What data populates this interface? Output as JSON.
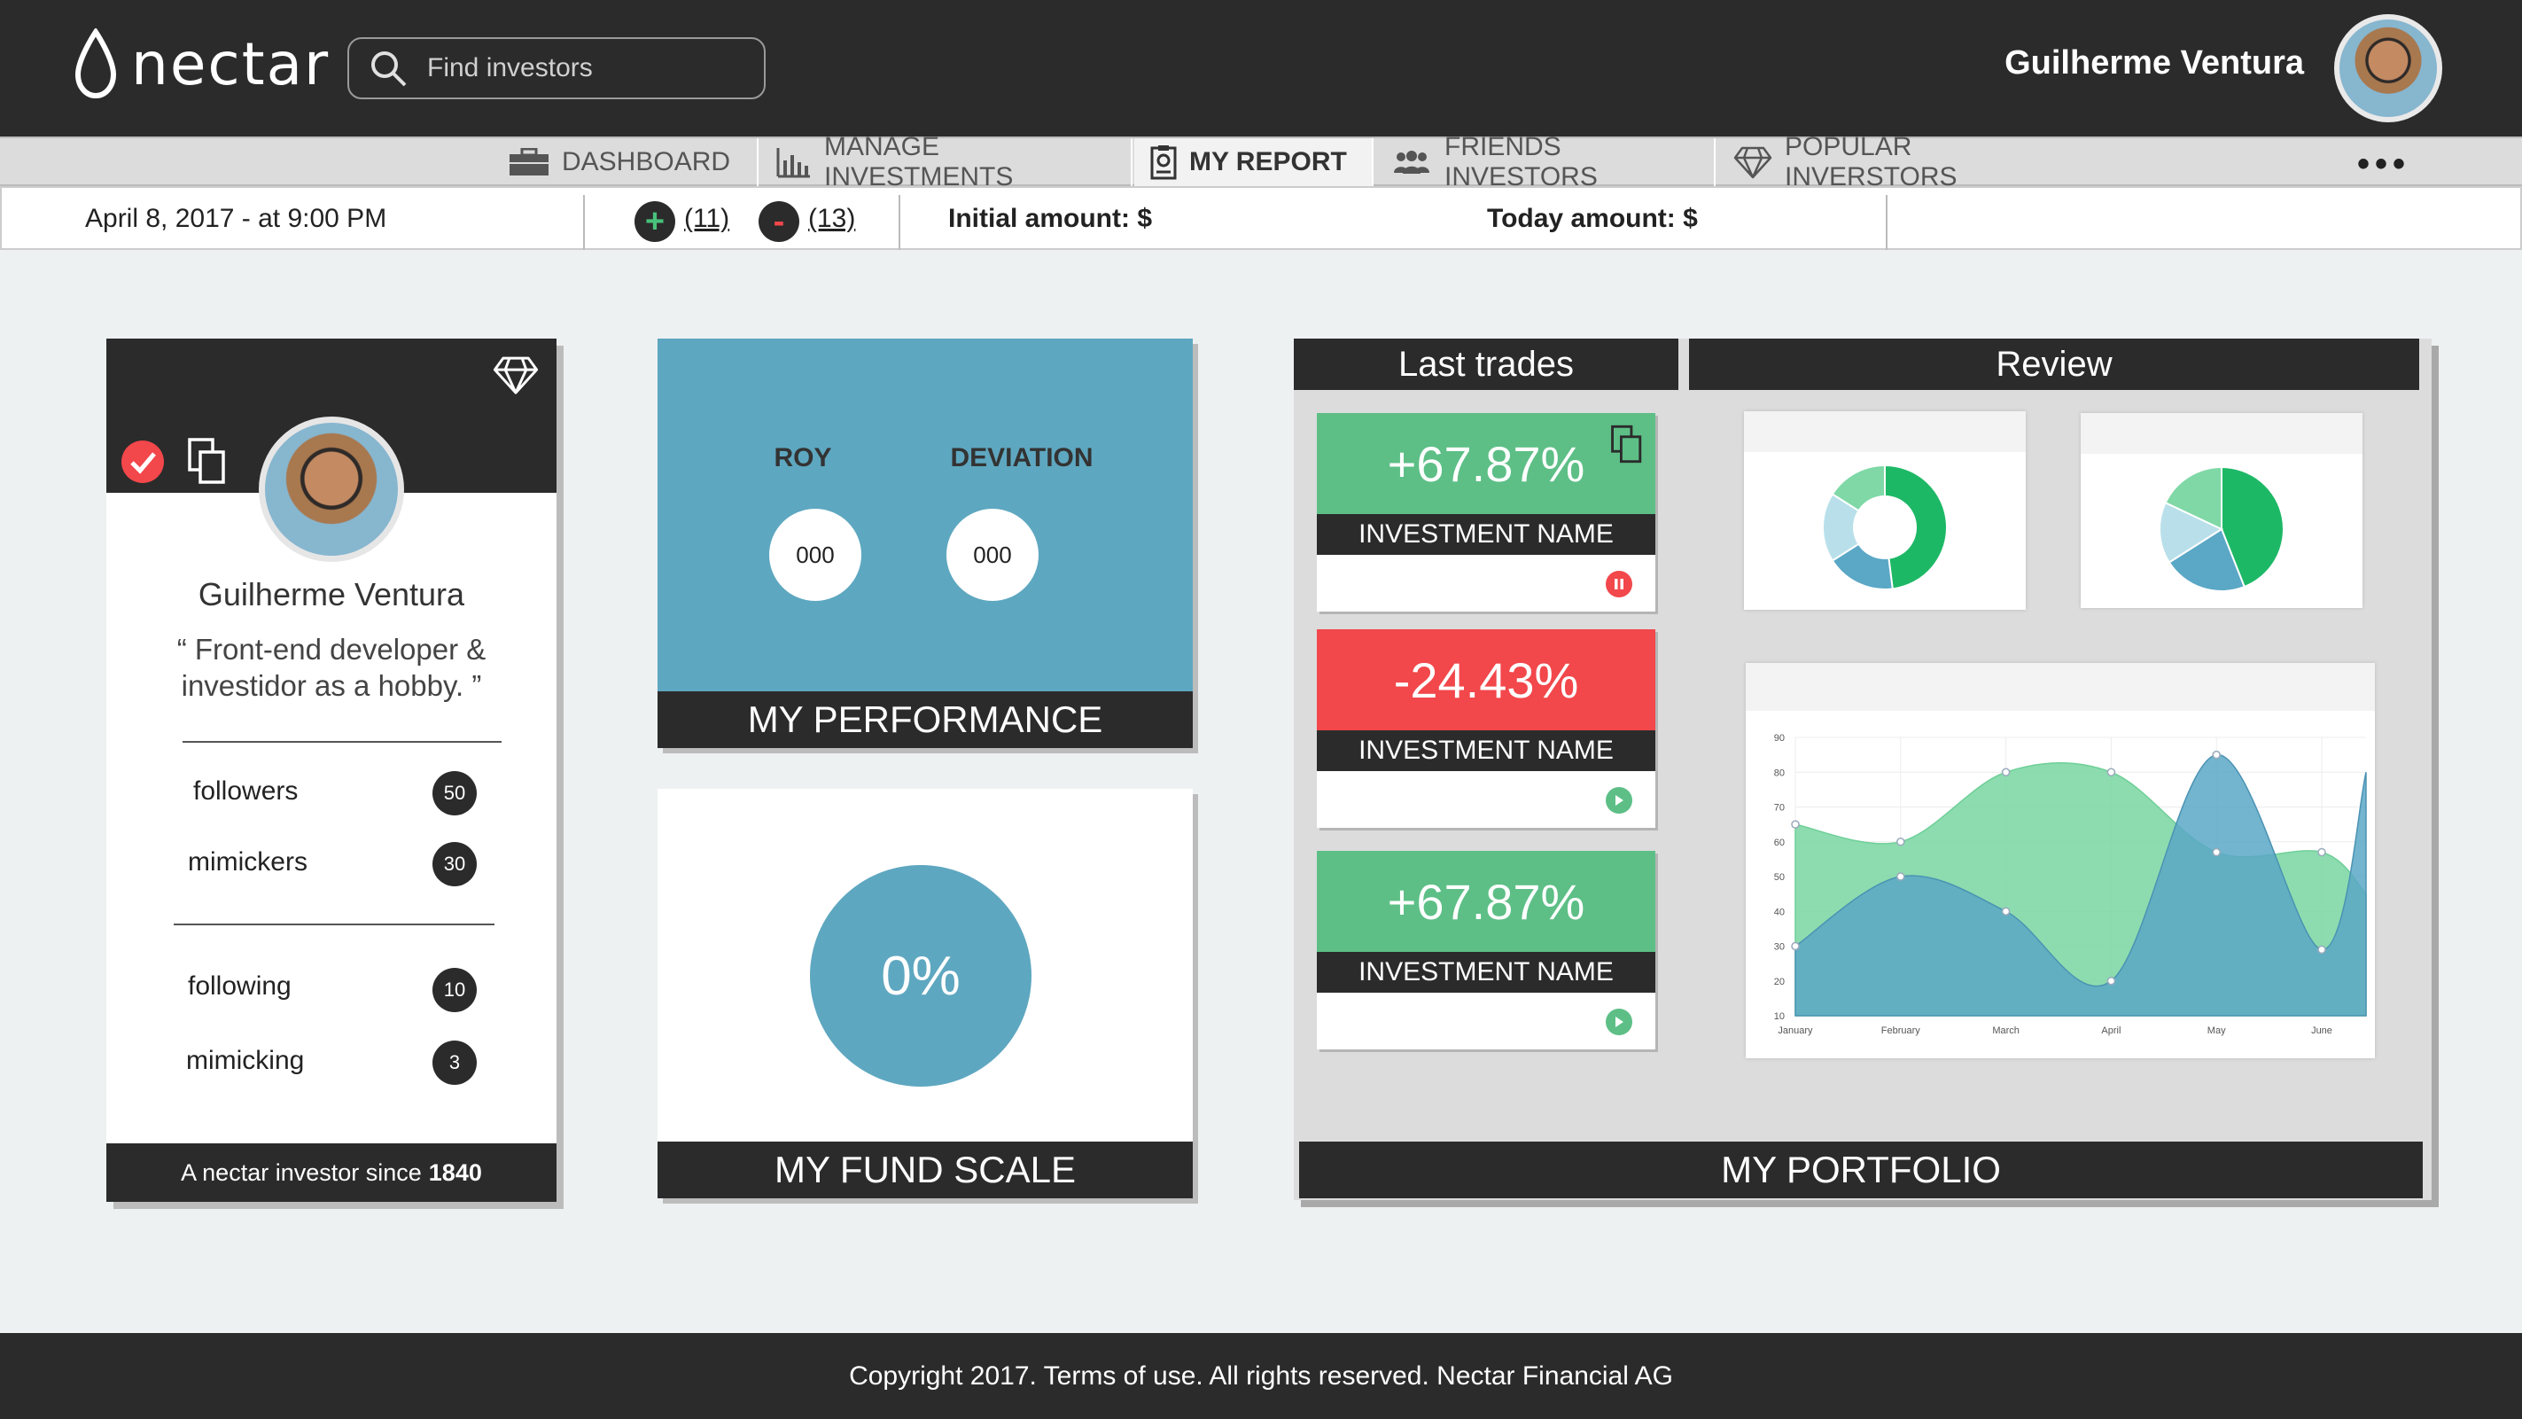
{
  "app": {
    "logo_text": "nectar"
  },
  "search": {
    "placeholder": "Find investors"
  },
  "user": {
    "name": "Guilherme Ventura"
  },
  "nav": {
    "tabs": [
      {
        "label": "DASHBOARD",
        "icon": "briefcase-icon",
        "active": false
      },
      {
        "label": "MANAGE INVESTMENTS",
        "icon": "bar-chart-icon",
        "active": false
      },
      {
        "label": "MY REPORT",
        "icon": "report-icon",
        "active": true
      },
      {
        "label": "FRIENDS INVESTORS",
        "icon": "people-icon",
        "active": false
      },
      {
        "label": "POPULAR INVERSTORS",
        "icon": "diamond-icon",
        "active": false
      }
    ],
    "more": "•••"
  },
  "infobar": {
    "date": "April 8, 2017 - at 9:00 PM",
    "plus_symbol": "+",
    "minus_symbol": "-",
    "plus_count": "(11)",
    "minus_count": "(13)",
    "initial_amount": "Initial amount: $",
    "today_amount": "Today amount: $"
  },
  "profile": {
    "name": "Guilherme Ventura",
    "bio": "“ Front-end developer & investidor as a hobby. ”",
    "stats": [
      {
        "label": "followers",
        "value": "50"
      },
      {
        "label": "mimickers",
        "value": "30"
      },
      {
        "label": "following",
        "value": "10"
      },
      {
        "label": "mimicking",
        "value": "3"
      }
    ],
    "since_prefix": "A nectar investor since",
    "since_year": "1840"
  },
  "performance": {
    "roy_label": "ROY",
    "roy_value": "000",
    "deviation_label": "DEVIATION",
    "deviation_value": "000",
    "title": "MY PERFORMANCE"
  },
  "fund": {
    "value": "0%",
    "title": "MY FUND SCALE"
  },
  "portfolio": {
    "last_trades_title": "Last trades",
    "review_title": "Review",
    "title": "MY PORTFOLIO",
    "trades": [
      {
        "pct": "+67.87%",
        "name": "INVESTMENT NAME",
        "color": "#5dbf86",
        "action": "pause"
      },
      {
        "pct": "-24.43%",
        "name": "INVESTMENT NAME",
        "color": "#f2474b",
        "action": "play"
      },
      {
        "pct": "+67.87%",
        "name": "INVESTMENT NAME",
        "color": "#5dbf86",
        "action": "play"
      }
    ]
  },
  "footer": {
    "text": "Copyright 2017. Terms of use. All rights reserved. Nectar Financial AG"
  },
  "chart_data": {
    "type": "area",
    "categories": [
      "January",
      "February",
      "March",
      "April",
      "May",
      "June"
    ],
    "y_ticks": [
      10,
      20,
      30,
      40,
      50,
      60,
      70,
      80,
      90
    ],
    "ylim": [
      10,
      90
    ],
    "grid": true,
    "series": [
      {
        "color": "#7fd8a6",
        "values": [
          65,
          60,
          80,
          80,
          57,
          57
        ]
      },
      {
        "color": "#5aa7c6",
        "values": [
          30,
          50,
          40,
          20,
          85,
          29
        ]
      }
    ]
  },
  "pie_charts": [
    {
      "type": "donut",
      "slices": [
        {
          "value": 48,
          "color": "#1db866"
        },
        {
          "value": 18,
          "color": "#5aa7c6"
        },
        {
          "value": 18,
          "color": "#b9e0ea"
        },
        {
          "value": 16,
          "color": "#7fd8a6"
        }
      ]
    },
    {
      "type": "pie",
      "slices": [
        {
          "value": 44,
          "color": "#1db866"
        },
        {
          "value": 22,
          "color": "#5aa7c6"
        },
        {
          "value": 16,
          "color": "#b9e0ea"
        },
        {
          "value": 18,
          "color": "#7fd8a6"
        }
      ]
    }
  ]
}
